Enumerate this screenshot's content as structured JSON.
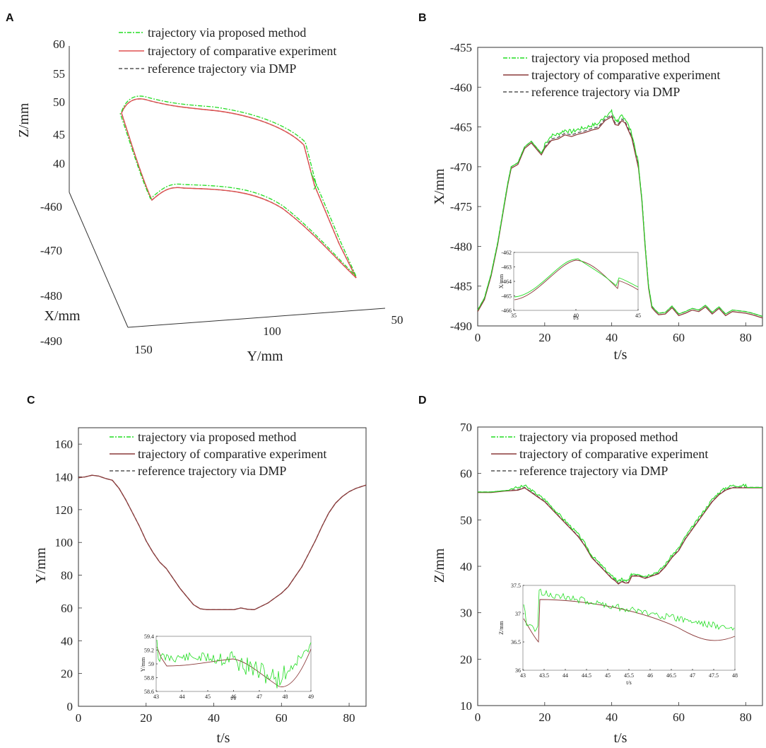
{
  "legend": {
    "proposed": "trajectory via proposed method",
    "comparative": "trajectory of comparative experiment",
    "reference": "reference trajectory via DMP"
  },
  "colors": {
    "proposed": "#22dd22",
    "comparative_A": "#e05050",
    "comparative": "#8b3a3a",
    "reference": "#555555"
  },
  "chart_data": [
    {
      "panel": "A",
      "type": "line3d",
      "zlabel": "Z/mm",
      "xlabel": "X/mm",
      "ylabel": "Y/mm",
      "z_ticks": [
        "60",
        "55",
        "50",
        "45",
        "40"
      ],
      "x_ticks": [
        "-460",
        "-470",
        "-480",
        "-490"
      ],
      "y_ticks": [
        "150",
        "100",
        "50"
      ],
      "zlim": [
        38,
        60
      ],
      "xlim": [
        -490,
        -460
      ],
      "ylim": [
        50,
        150
      ]
    },
    {
      "panel": "B",
      "type": "line",
      "xlabel": "t/s",
      "ylabel": "X/mm",
      "xlim": [
        0,
        85
      ],
      "ylim": [
        -490,
        -455
      ],
      "x_ticks": [
        "0",
        "20",
        "40",
        "60",
        "80"
      ],
      "y_ticks": [
        "-455",
        "-460",
        "-465",
        "-470",
        "-475",
        "-480",
        "-485",
        "-490"
      ],
      "series_reference": {
        "t": [
          0,
          2,
          4,
          6,
          8,
          9,
          10,
          12,
          14,
          16,
          18,
          19,
          20,
          22,
          24,
          26,
          28,
          30,
          32,
          34,
          36,
          38,
          40,
          41,
          42,
          43,
          44,
          46,
          48,
          49,
          50,
          51,
          52,
          53,
          54,
          56,
          58,
          60,
          62,
          64,
          66,
          68,
          70,
          72,
          74,
          76,
          78,
          80,
          82,
          85
        ],
        "x": [
          -488,
          -486.5,
          -483.5,
          -479.5,
          -474.5,
          -472,
          -470,
          -469.5,
          -467.5,
          -466.8,
          -467.8,
          -468.3,
          -467.5,
          -466.5,
          -466.3,
          -465.8,
          -466,
          -465.7,
          -465.5,
          -465.2,
          -465,
          -464,
          -463.5,
          -464.5,
          -464.6,
          -464,
          -464.3,
          -466.2,
          -470,
          -474,
          -480,
          -485,
          -487.5,
          -488,
          -488.4,
          -488.3,
          -487.5,
          -488.5,
          -488.2,
          -487.8,
          -488,
          -487.4,
          -488.3,
          -487.6,
          -488.5,
          -488,
          -488.1,
          -488.2,
          -488.4,
          -488.8
        ]
      },
      "inset": {
        "xlabel": "t/s",
        "ylabel": "X/mm",
        "xlim": [
          35,
          45
        ],
        "ylim": [
          -466,
          -462
        ],
        "x_ticks": [
          "35",
          "40",
          "45"
        ],
        "y_ticks": [
          "-462",
          "-463",
          "-464",
          "-465",
          "-466"
        ]
      }
    },
    {
      "panel": "C",
      "type": "line",
      "xlabel": "t/s",
      "ylabel": "Y/mm",
      "xlim": [
        0,
        85
      ],
      "ylim": [
        0,
        170
      ],
      "x_ticks": [
        "0",
        "20",
        "40",
        "60",
        "80"
      ],
      "y_ticks": [
        "0",
        "20",
        "40",
        "60",
        "80",
        "100",
        "120",
        "140",
        "160"
      ],
      "series_reference": {
        "t": [
          0,
          2,
          4,
          6,
          8,
          10,
          12,
          14,
          16,
          18,
          20,
          22,
          24,
          26,
          28,
          30,
          32,
          34,
          36,
          38,
          40,
          42,
          44,
          46,
          48,
          50,
          52,
          54,
          56,
          58,
          60,
          62,
          64,
          66,
          68,
          70,
          72,
          74,
          76,
          78,
          80,
          82,
          85
        ],
        "y": [
          139.5,
          140,
          141,
          140.5,
          139,
          138,
          133,
          126,
          118,
          110,
          101,
          94,
          88,
          84,
          78,
          72,
          67,
          62,
          59.5,
          59,
          59,
          59,
          59,
          59,
          60,
          59.2,
          59,
          61,
          63,
          66,
          69,
          73,
          79,
          85,
          93,
          101,
          110,
          118,
          124,
          128,
          131,
          133,
          135
        ]
      },
      "inset": {
        "xlabel": "t/s",
        "ylabel": "Y/mm",
        "xlim": [
          43,
          49
        ],
        "ylim": [
          58.6,
          59.4
        ],
        "x_ticks": [
          "43",
          "44",
          "45",
          "46",
          "47",
          "48",
          "49"
        ],
        "y_ticks": [
          "59.4",
          "59.2",
          "59",
          "58.8",
          "58.6"
        ]
      }
    },
    {
      "panel": "D",
      "type": "line",
      "xlabel": "t/s",
      "ylabel": "Z/mm",
      "xlim": [
        0,
        85
      ],
      "ylim": [
        10,
        70
      ],
      "x_ticks": [
        "0",
        "20",
        "40",
        "60",
        "80"
      ],
      "y_ticks": [
        "10",
        "20",
        "30",
        "40",
        "50",
        "60",
        "70"
      ],
      "series_reference": {
        "t": [
          0,
          4,
          8,
          12,
          14,
          16,
          18,
          20,
          22,
          24,
          26,
          28,
          30,
          32,
          34,
          36,
          38,
          40,
          41,
          42,
          43,
          44,
          45,
          46,
          48,
          50,
          52,
          54,
          56,
          58,
          60,
          62,
          64,
          66,
          68,
          70,
          72,
          74,
          76,
          78,
          80,
          82,
          85
        ],
        "z": [
          56,
          56,
          56.3,
          56.5,
          57,
          56,
          55,
          54,
          52.5,
          51,
          49.5,
          48,
          46.5,
          44.5,
          42,
          40.5,
          39,
          37.5,
          37,
          36.3,
          36.8,
          36.5,
          36.5,
          38,
          38,
          37.5,
          38,
          38.5,
          40,
          42,
          43.5,
          46,
          48,
          50,
          52,
          54,
          55.5,
          56.5,
          57,
          57,
          57,
          57,
          57
        ]
      },
      "inset": {
        "xlabel": "t/s",
        "ylabel": "Z/mm",
        "xlim": [
          43,
          48
        ],
        "ylim": [
          36,
          37.5
        ],
        "x_ticks": [
          "43",
          "43.5",
          "44",
          "44.5",
          "45",
          "45.5",
          "46",
          "46.5",
          "47",
          "47.5",
          "48"
        ],
        "y_ticks": [
          "37.5",
          "37",
          "36.5",
          "36"
        ]
      }
    }
  ]
}
